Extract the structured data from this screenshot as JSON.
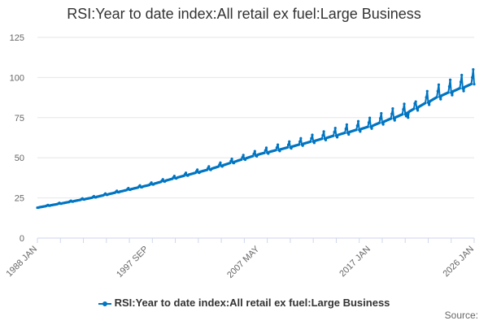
{
  "title": "RSI:Year to date index:All retail ex fuel:Large Business",
  "source_label": "Source:",
  "colors": {
    "series": "#0075c2",
    "grid": "#e6e6e6",
    "axis": "#ccd6eb",
    "text": "#666666"
  },
  "chart_data": {
    "type": "line",
    "title": "RSI:Year to date index:All retail ex fuel:Large Business",
    "xlabel": "",
    "ylabel": "",
    "x_type": "monthly",
    "x_start": "1988 JAN",
    "x_end": "2026 JAN",
    "ylim": [
      0,
      125
    ],
    "yticks": [
      0,
      25,
      50,
      75,
      100,
      125
    ],
    "xtick_labels": [
      "1988 JAN",
      "1997 SEP",
      "2007 MAY",
      "2017 JAN",
      "2026 JAN"
    ],
    "grid": true,
    "legend": "bottom",
    "series": [
      {
        "name": "RSI:Year to date index:All retail ex fuel:Large Business",
        "trend": [
          {
            "date": "1988 JAN",
            "value": 19.0
          },
          {
            "date": "1990 JAN",
            "value": 21.5
          },
          {
            "date": "1993 JAN",
            "value": 25.5
          },
          {
            "date": "1997 SEP",
            "value": 33.0
          },
          {
            "date": "2000 JAN",
            "value": 37.5
          },
          {
            "date": "2003 JAN",
            "value": 43.0
          },
          {
            "date": "2007 MAY",
            "value": 52.5
          },
          {
            "date": "2010 JAN",
            "value": 57.0
          },
          {
            "date": "2013 JAN",
            "value": 62.5
          },
          {
            "date": "2017 JAN",
            "value": 70.0
          },
          {
            "date": "2020 JAN",
            "value": 78.0
          },
          {
            "date": "2023 JAN",
            "value": 89.0
          },
          {
            "date": "2026 JAN",
            "value": 97.0
          }
        ],
        "december_peak_pct": [
          {
            "date": "1988 JAN",
            "value": 2
          },
          {
            "date": "2000 JAN",
            "value": 3.5
          },
          {
            "date": "2007 MAY",
            "value": 5
          },
          {
            "date": "2015 JAN",
            "value": 7
          },
          {
            "date": "2026 JAN",
            "value": 8
          }
        ],
        "notable_points": [
          {
            "date": "2020 APR",
            "value": 75
          },
          {
            "date": "2020 DEC",
            "value": 85
          },
          {
            "date": "2025 DEC",
            "value": 105
          }
        ]
      }
    ]
  }
}
